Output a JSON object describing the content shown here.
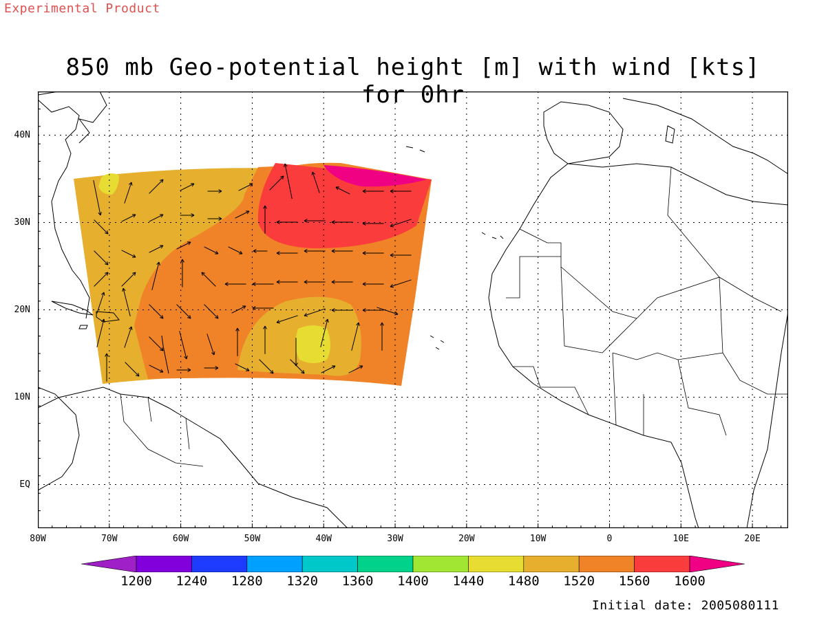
{
  "header": {
    "product_label": "Experimental Product"
  },
  "map": {
    "title": "850 mb Geo-potential height [m] with wind [kts] for 0hr",
    "lon_range": [
      -80,
      25
    ],
    "lat_range": [
      -5,
      45
    ],
    "x_ticks": [
      "80W",
      "70W",
      "60W",
      "50W",
      "40W",
      "30W",
      "20W",
      "10W",
      "0",
      "10E",
      "20E"
    ],
    "y_ticks": [
      "40N",
      "30N",
      "20N",
      "10N",
      "EQ"
    ],
    "grid": "dotted"
  },
  "colorbar": {
    "levels": [
      "1200",
      "1240",
      "1280",
      "1320",
      "1360",
      "1400",
      "1440",
      "1480",
      "1520",
      "1560",
      "1600"
    ],
    "colors": [
      "#a020c8",
      "#8200dc",
      "#1e3cff",
      "#00a0ff",
      "#00c8c8",
      "#00d28c",
      "#a0e632",
      "#e6dc32",
      "#e6af2d",
      "#f08228",
      "#fa3c3c",
      "#f00082"
    ]
  },
  "footer": {
    "initial_date": "Initial date: 2005080111"
  }
}
